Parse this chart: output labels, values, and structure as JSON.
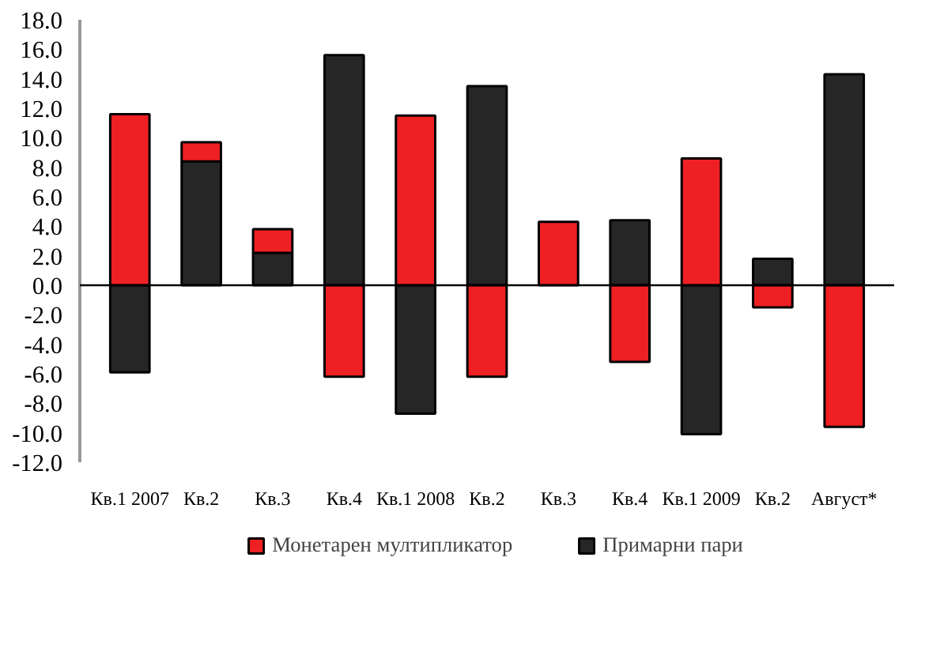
{
  "chart_data": {
    "type": "bar",
    "stacked": true,
    "categories": [
      "Кв.1 2007",
      "Кв.2",
      "Кв.3",
      "Кв.4",
      "Кв.1 2008",
      "Кв.2",
      "Кв.3",
      "Кв.4",
      "Кв.1 2009",
      "Кв.2",
      "Август*"
    ],
    "series": [
      {
        "name": "Примарни пари",
        "color": "#262626",
        "values": [
          -5.9,
          8.4,
          2.2,
          15.6,
          -8.7,
          13.5,
          0,
          4.4,
          -10.1,
          1.8,
          14.3
        ]
      },
      {
        "name": "Монетарен мултипликатор",
        "color": "#ee2024",
        "values": [
          11.6,
          1.3,
          1.6,
          -6.2,
          11.5,
          -6.2,
          4.3,
          -5.2,
          8.6,
          -1.5,
          -9.6
        ]
      }
    ],
    "ylim": [
      -12,
      18
    ],
    "yticks": [
      {
        "value": -12,
        "label": "-12.0"
      },
      {
        "value": -10,
        "label": "-10.0"
      },
      {
        "value": -8,
        "label": "-8.0"
      },
      {
        "value": -6,
        "label": "-6.0"
      },
      {
        "value": -4,
        "label": "-4.0"
      },
      {
        "value": -2,
        "label": "-2.0"
      },
      {
        "value": 0,
        "label": "0.0"
      },
      {
        "value": 2,
        "label": "2.0"
      },
      {
        "value": 4,
        "label": "4.0"
      },
      {
        "value": 6,
        "label": "6.0"
      },
      {
        "value": 8,
        "label": "8.0"
      },
      {
        "value": 10,
        "label": "10.0"
      },
      {
        "value": 12,
        "label": "12.0"
      },
      {
        "value": 14,
        "label": "14.0"
      },
      {
        "value": 16,
        "label": "16.0"
      },
      {
        "value": 18,
        "label": "18.0"
      }
    ],
    "ref_lines": [
      {
        "axis": "y",
        "value": 0,
        "color": "#000000"
      }
    ],
    "grid": false,
    "legend": "bottom"
  }
}
